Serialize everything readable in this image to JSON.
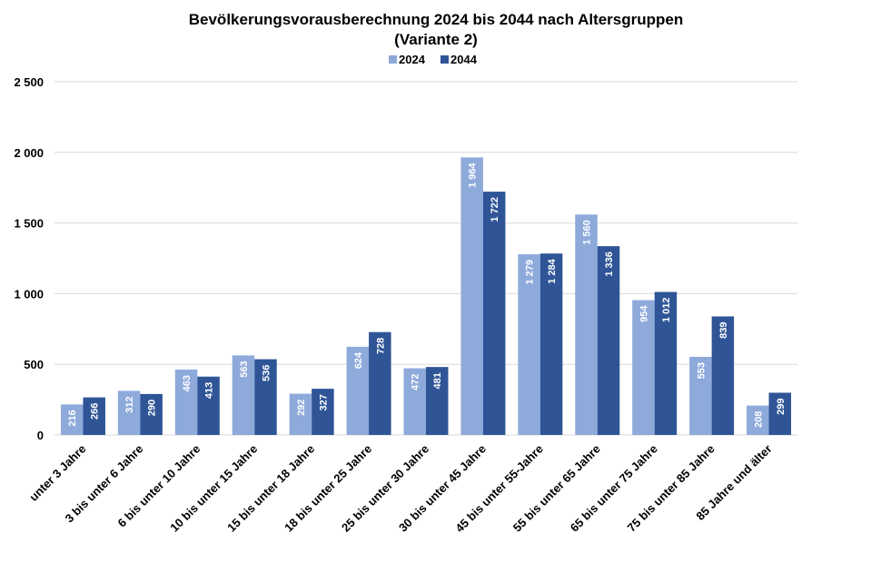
{
  "chart_data": {
    "type": "bar",
    "title": "Bevölkerungsvorausberechnung 2024 bis 2044 nach Altersgruppen",
    "subtitle": "(Variante 2)",
    "legend_position": "top",
    "grid": true,
    "ylim": [
      0,
      2500
    ],
    "yticks": [
      0,
      500,
      1000,
      1500,
      2000,
      2500
    ],
    "ytick_labels": [
      "0",
      "500",
      "1 000",
      "1 500",
      "2 000",
      "2 500"
    ],
    "categories": [
      "unter 3 Jahre",
      "3 bis unter 6 Jahre",
      "6 bis unter 10 Jahre",
      "10 bis unter 15 Jahre",
      "15 bis unter 18 Jahre",
      "18 bis unter 25 Jahre",
      "25 bis unter 30 Jahre",
      "30 bis unter 45 Jahre",
      "45 bis unter 55-Jahre",
      "55 bis unter 65 Jahre",
      "65 bis unter 75 Jahre",
      "75 bis unter 85 Jahre",
      "85 Jahre und älter"
    ],
    "series": [
      {
        "name": "2024",
        "color": "#8eaadb",
        "values": [
          216,
          312,
          463,
          563,
          292,
          624,
          472,
          1964,
          1279,
          1560,
          954,
          553,
          208
        ],
        "labels": [
          "216",
          "312",
          "463",
          "563",
          "292",
          "624",
          "472",
          "1 964",
          "1 279",
          "1 560",
          "954",
          "553",
          "208"
        ]
      },
      {
        "name": "2044",
        "color": "#2f5597",
        "values": [
          266,
          290,
          413,
          536,
          327,
          728,
          481,
          1722,
          1284,
          1336,
          1012,
          839,
          299
        ],
        "labels": [
          "266",
          "290",
          "413",
          "536",
          "327",
          "728",
          "481",
          "1 722",
          "1 284",
          "1 336",
          "1 012",
          "839",
          "299"
        ]
      }
    ]
  }
}
